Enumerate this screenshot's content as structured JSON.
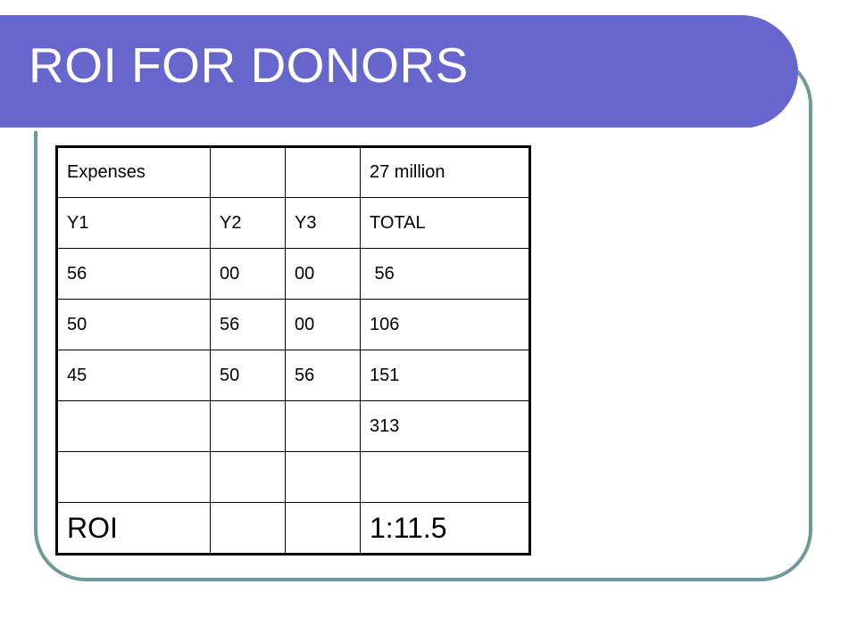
{
  "slide": {
    "title": "ROI FOR DONORS"
  },
  "table": {
    "rows": [
      [
        "Expenses",
        "",
        "",
        "27 million"
      ],
      [
        "Y1",
        "Y2",
        "Y3",
        "TOTAL"
      ],
      [
        "56",
        "00",
        "00",
        " 56"
      ],
      [
        "50",
        "56",
        "00",
        "106"
      ],
      [
        "45",
        "50",
        "56",
        "151"
      ],
      [
        "",
        "",
        "",
        "313"
      ],
      [
        "",
        "",
        "",
        ""
      ],
      [
        "ROI",
        "",
        "",
        "1:11.5"
      ]
    ]
  },
  "colors": {
    "title_bar": "#6666cc",
    "frame_border": "#6f9a9a",
    "title_text": "#ffffff"
  }
}
